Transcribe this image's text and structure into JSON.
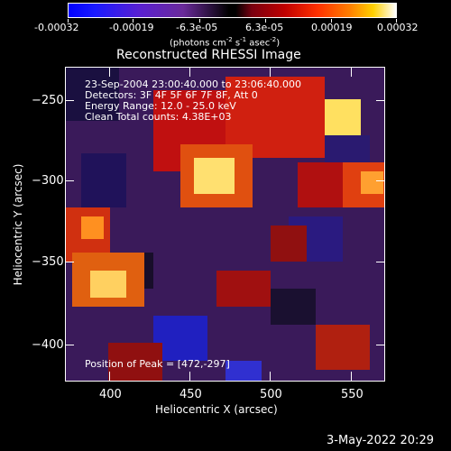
{
  "colorbar": {
    "tick_labels": [
      "-0.00032",
      "-0.00019",
      "-6.3e-05",
      "6.3e-05",
      "0.00019",
      "0.00032"
    ],
    "units_prefix": "(photons cm",
    "units_exp1": "-2",
    "units_mid": " s",
    "units_exp2": "-1",
    "units_mid2": " asec",
    "units_exp3": "-2",
    "units_suffix": ")"
  },
  "plot": {
    "title": "Reconstructed RHESSI Image",
    "xlabel": "Heliocentric X (arcsec)",
    "ylabel": "Heliocentric Y (arcsec)",
    "x_ticks": [
      400,
      450,
      500,
      550
    ],
    "y_ticks": [
      -250,
      -300,
      -350,
      -400
    ],
    "xlim": [
      375,
      568
    ],
    "ylim": [
      -423,
      -227
    ],
    "annotations": {
      "time": "23-Sep-2004 23:00:40.000 to 23:06:40.000",
      "detectors": "Detectors: 3F 4F 5F 6F 7F 8F, Att 0",
      "energy": "Energy Range: 12.0 - 25.0 keV",
      "clean": "Clean     Total counts: 4.38E+03",
      "peak": "Position of Peak = [472,-297]"
    }
  },
  "footer_date": "3-May-2022 20:29"
}
